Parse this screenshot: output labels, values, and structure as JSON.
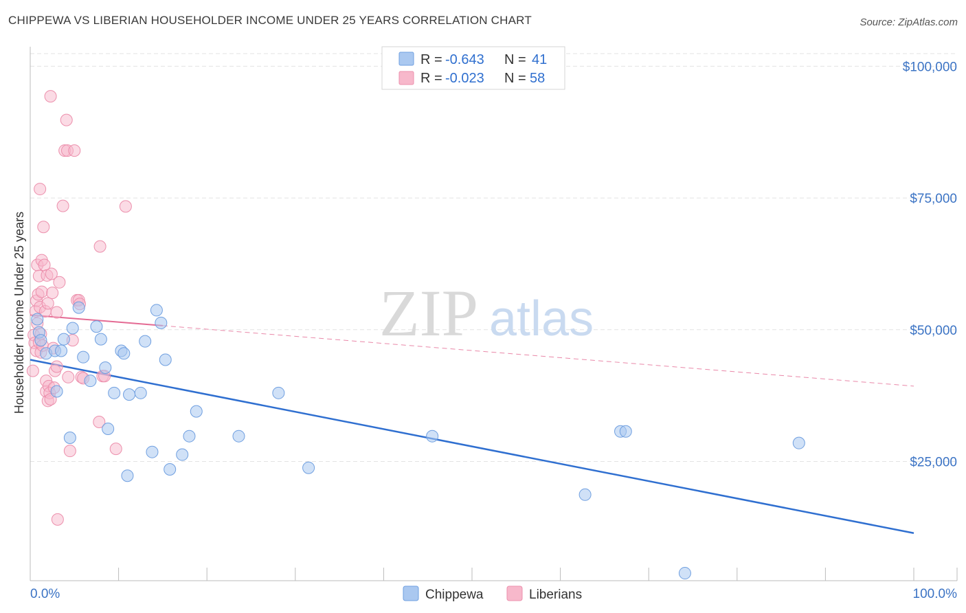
{
  "title": "CHIPPEWA VS LIBERIAN HOUSEHOLDER INCOME UNDER 25 YEARS CORRELATION CHART",
  "source": "Source: ZipAtlas.com",
  "watermark": {
    "zip": "ZIP",
    "atlas": "atlas"
  },
  "colors": {
    "chippewa_fill": "#aac8f0",
    "chippewa_stroke": "#6f9fe0",
    "chippewa_line": "#2f6fd0",
    "liberian_fill": "#f7b8cb",
    "liberian_stroke": "#ec8fac",
    "liberian_line": "#e46a93",
    "axis_label": "#3b73c4",
    "grid": "#e3e3e3"
  },
  "legend": {
    "rows": [
      {
        "r_label": "R =",
        "r_value": "-0.643",
        "n_label": "N =",
        "n_value": "41"
      },
      {
        "r_label": "R =",
        "r_value": "-0.023",
        "n_label": "N =",
        "n_value": "58"
      }
    ]
  },
  "bottom_legend": [
    "Chippewa",
    "Liberians"
  ],
  "chart_data": {
    "type": "scatter",
    "title": "CHIPPEWA VS LIBERIAN HOUSEHOLDER INCOME UNDER 25 YEARS CORRELATION CHART",
    "xlabel": "",
    "ylabel": "Householder Income Under 25 years",
    "xlim": [
      0,
      100
    ],
    "ylim": [
      0,
      105000
    ],
    "x_tick_labels": [
      "0.0%",
      "100.0%"
    ],
    "y_ticks": [
      25000,
      50000,
      75000,
      100000
    ],
    "y_tick_labels": [
      "$25,000",
      "$50,000",
      "$75,000",
      "$100,000"
    ],
    "grid": true,
    "series": [
      {
        "name": "Chippewa",
        "r": -0.643,
        "n": 41,
        "trend": {
          "x0": 0,
          "y0": 44300,
          "x1": 100,
          "y1": 11400
        },
        "points": [
          {
            "x": 0.8,
            "y": 52000
          },
          {
            "x": 1.0,
            "y": 49500
          },
          {
            "x": 1.2,
            "y": 48000
          },
          {
            "x": 1.8,
            "y": 45500
          },
          {
            "x": 2.8,
            "y": 46000
          },
          {
            "x": 3.0,
            "y": 38300
          },
          {
            "x": 3.5,
            "y": 46000
          },
          {
            "x": 3.8,
            "y": 48200
          },
          {
            "x": 4.5,
            "y": 29500
          },
          {
            "x": 4.8,
            "y": 50300
          },
          {
            "x": 5.5,
            "y": 54200
          },
          {
            "x": 6.0,
            "y": 44800
          },
          {
            "x": 6.8,
            "y": 40300
          },
          {
            "x": 7.5,
            "y": 50600
          },
          {
            "x": 8.0,
            "y": 48200
          },
          {
            "x": 8.5,
            "y": 42800
          },
          {
            "x": 8.8,
            "y": 31200
          },
          {
            "x": 9.5,
            "y": 38000
          },
          {
            "x": 10.3,
            "y": 46000
          },
          {
            "x": 10.6,
            "y": 45500
          },
          {
            "x": 11.0,
            "y": 22300
          },
          {
            "x": 11.2,
            "y": 37700
          },
          {
            "x": 12.5,
            "y": 38000
          },
          {
            "x": 13.0,
            "y": 47800
          },
          {
            "x": 13.8,
            "y": 26800
          },
          {
            "x": 14.3,
            "y": 53700
          },
          {
            "x": 14.8,
            "y": 51300
          },
          {
            "x": 15.3,
            "y": 44300
          },
          {
            "x": 15.8,
            "y": 23500
          },
          {
            "x": 17.2,
            "y": 26300
          },
          {
            "x": 18.0,
            "y": 29800
          },
          {
            "x": 18.8,
            "y": 34500
          },
          {
            "x": 23.6,
            "y": 29800
          },
          {
            "x": 28.1,
            "y": 38000
          },
          {
            "x": 31.5,
            "y": 23800
          },
          {
            "x": 45.5,
            "y": 29800
          },
          {
            "x": 62.8,
            "y": 18700
          },
          {
            "x": 66.8,
            "y": 30700
          },
          {
            "x": 67.4,
            "y": 30700
          },
          {
            "x": 74.1,
            "y": 3800
          },
          {
            "x": 87.0,
            "y": 28500
          }
        ]
      },
      {
        "name": "Liberians",
        "r": -0.023,
        "n": 58,
        "trend": {
          "x0": 0,
          "y0": 52800,
          "x1": 100,
          "y1": 39300,
          "solid_until_x": 15
        },
        "points": [
          {
            "x": 0.3,
            "y": 42200
          },
          {
            "x": 0.4,
            "y": 49000
          },
          {
            "x": 0.5,
            "y": 47500
          },
          {
            "x": 0.6,
            "y": 53500
          },
          {
            "x": 0.7,
            "y": 55500
          },
          {
            "x": 0.7,
            "y": 46000
          },
          {
            "x": 0.8,
            "y": 62300
          },
          {
            "x": 0.8,
            "y": 51200
          },
          {
            "x": 0.9,
            "y": 56700
          },
          {
            "x": 1.0,
            "y": 60200
          },
          {
            "x": 1.0,
            "y": 47600
          },
          {
            "x": 1.1,
            "y": 76700
          },
          {
            "x": 1.1,
            "y": 54300
          },
          {
            "x": 1.2,
            "y": 49200
          },
          {
            "x": 1.2,
            "y": 45700
          },
          {
            "x": 1.3,
            "y": 63200
          },
          {
            "x": 1.3,
            "y": 57200
          },
          {
            "x": 1.4,
            "y": 47000
          },
          {
            "x": 1.5,
            "y": 69500
          },
          {
            "x": 1.6,
            "y": 62300
          },
          {
            "x": 1.7,
            "y": 53500
          },
          {
            "x": 1.8,
            "y": 40300
          },
          {
            "x": 1.8,
            "y": 38300
          },
          {
            "x": 1.9,
            "y": 60300
          },
          {
            "x": 2.0,
            "y": 55000
          },
          {
            "x": 2.0,
            "y": 36500
          },
          {
            "x": 2.1,
            "y": 39300
          },
          {
            "x": 2.2,
            "y": 38000
          },
          {
            "x": 2.3,
            "y": 36800
          },
          {
            "x": 2.3,
            "y": 94300
          },
          {
            "x": 2.4,
            "y": 60600
          },
          {
            "x": 2.5,
            "y": 57000
          },
          {
            "x": 2.6,
            "y": 46500
          },
          {
            "x": 2.7,
            "y": 39000
          },
          {
            "x": 2.8,
            "y": 42200
          },
          {
            "x": 3.0,
            "y": 53300
          },
          {
            "x": 3.0,
            "y": 43000
          },
          {
            "x": 3.1,
            "y": 14000
          },
          {
            "x": 3.3,
            "y": 59000
          },
          {
            "x": 3.7,
            "y": 73500
          },
          {
            "x": 3.9,
            "y": 84000
          },
          {
            "x": 4.1,
            "y": 89800
          },
          {
            "x": 4.2,
            "y": 84000
          },
          {
            "x": 4.3,
            "y": 41000
          },
          {
            "x": 4.5,
            "y": 27000
          },
          {
            "x": 4.8,
            "y": 48000
          },
          {
            "x": 5.0,
            "y": 84000
          },
          {
            "x": 5.3,
            "y": 55600
          },
          {
            "x": 5.5,
            "y": 55600
          },
          {
            "x": 5.6,
            "y": 54900
          },
          {
            "x": 5.8,
            "y": 41000
          },
          {
            "x": 6.0,
            "y": 40800
          },
          {
            "x": 7.8,
            "y": 32500
          },
          {
            "x": 7.9,
            "y": 65800
          },
          {
            "x": 8.2,
            "y": 41200
          },
          {
            "x": 8.4,
            "y": 41200
          },
          {
            "x": 9.7,
            "y": 27400
          },
          {
            "x": 10.8,
            "y": 73400
          }
        ]
      }
    ]
  }
}
